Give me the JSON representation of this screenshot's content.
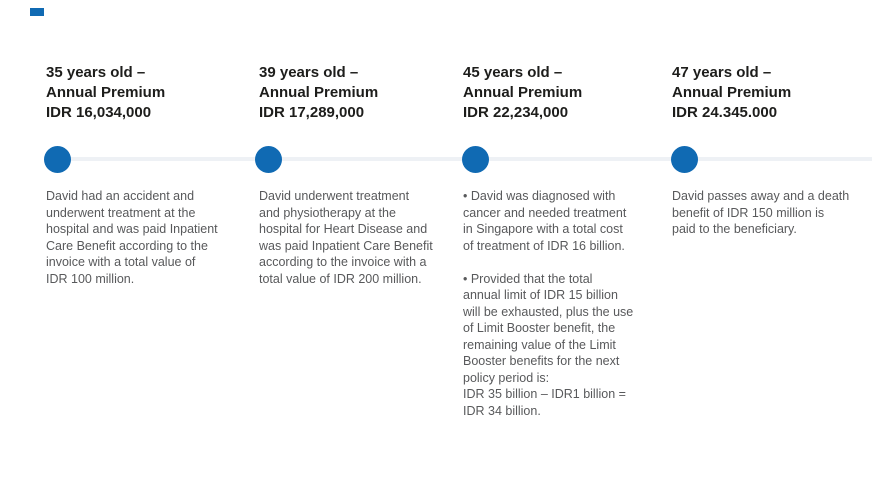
{
  "page": {
    "background_color": "#ffffff"
  },
  "decor": {
    "brand_mark_color": "#106ab3"
  },
  "timeline": {
    "line_color": "#eef1f5",
    "dot_color": "#106ab3",
    "milestones": [
      {
        "heading": "35 years old –\nAnnual Premium\nIDR 16,034,000",
        "description": "David had an accident and\nunderwent treatment at the\nhospital and was paid Inpatient\nCare Benefit according to the\ninvoice with a total value of\nIDR 100 million."
      },
      {
        "heading": "39 years old –\nAnnual Premium\nIDR 17,289,000",
        "description": "David underwent treatment\nand physiotherapy at the\nhospital for Heart Disease and\nwas paid Inpatient Care Benefit\naccording to the invoice with a\ntotal value of IDR 200 million."
      },
      {
        "heading": "45 years old –\nAnnual Premium\nIDR 22,234,000",
        "description": "• David was diagnosed with\ncancer and needed treatment\nin Singapore with a total cost\nof treatment of IDR 16 billion.\n\n• Provided that the total\nannual limit of IDR 15 billion\nwill be exhausted, plus the use\nof Limit Booster benefit, the\nremaining value of the Limit\nBooster benefits for the next\npolicy period is:\nIDR 35 billion – IDR1 billion =\nIDR 34 billion."
      },
      {
        "heading": "47 years old –\nAnnual Premium\nIDR 24.345.000",
        "description": "David passes away and a death\nbenefit of IDR 150 million is\npaid to the beneficiary."
      }
    ]
  }
}
